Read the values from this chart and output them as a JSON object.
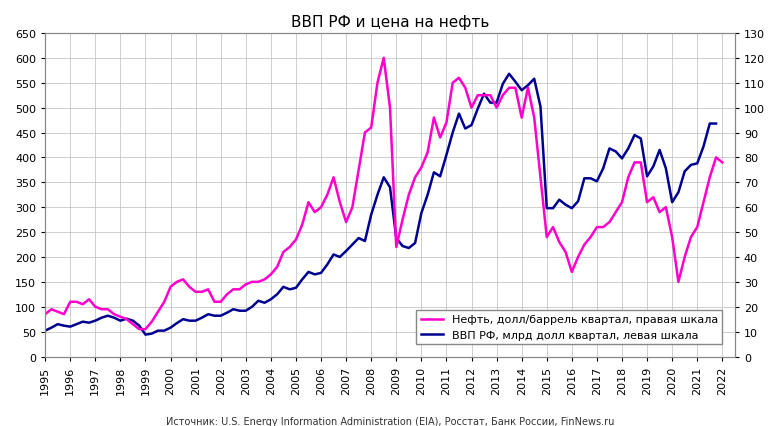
{
  "title": "ВВП РФ и цена на нефть",
  "source": "Источник: U.S. Energy Information Administration (EIA), Росстат, Банк России, FinNews.ru",
  "legend_oil": "Нефть, долл/баррель квартал, правая шкала",
  "legend_gdp": "ВВП РФ, млрд долл квартал, левая шкала",
  "oil_color": "#FF00CC",
  "gdp_color": "#000090",
  "background_color": "#FFFFFF",
  "grid_color": "#BBBBBB",
  "ylim_left": [
    0,
    650
  ],
  "ylim_right": [
    0,
    130
  ],
  "yticks_left": [
    0,
    50,
    100,
    150,
    200,
    250,
    300,
    350,
    400,
    450,
    500,
    550,
    600,
    650
  ],
  "yticks_right": [
    0,
    10,
    20,
    30,
    40,
    50,
    60,
    70,
    80,
    90,
    100,
    110,
    120,
    130
  ],
  "gdp_x": [
    1995.0,
    1995.25,
    1995.5,
    1995.75,
    1996.0,
    1996.25,
    1996.5,
    1996.75,
    1997.0,
    1997.25,
    1997.5,
    1997.75,
    1998.0,
    1998.25,
    1998.5,
    1998.75,
    1999.0,
    1999.25,
    1999.5,
    1999.75,
    2000.0,
    2000.25,
    2000.5,
    2000.75,
    2001.0,
    2001.25,
    2001.5,
    2001.75,
    2002.0,
    2002.25,
    2002.5,
    2002.75,
    2003.0,
    2003.25,
    2003.5,
    2003.75,
    2004.0,
    2004.25,
    2004.5,
    2004.75,
    2005.0,
    2005.25,
    2005.5,
    2005.75,
    2006.0,
    2006.25,
    2006.5,
    2006.75,
    2007.0,
    2007.25,
    2007.5,
    2007.75,
    2008.0,
    2008.25,
    2008.5,
    2008.75,
    2009.0,
    2009.25,
    2009.5,
    2009.75,
    2010.0,
    2010.25,
    2010.5,
    2010.75,
    2011.0,
    2011.25,
    2011.5,
    2011.75,
    2012.0,
    2012.25,
    2012.5,
    2012.75,
    2013.0,
    2013.25,
    2013.5,
    2013.75,
    2014.0,
    2014.25,
    2014.5,
    2014.75,
    2015.0,
    2015.25,
    2015.5,
    2015.75,
    2016.0,
    2016.25,
    2016.5,
    2016.75,
    2017.0,
    2017.25,
    2017.5,
    2017.75,
    2018.0,
    2018.25,
    2018.5,
    2018.75,
    2019.0,
    2019.25,
    2019.5,
    2019.75,
    2020.0,
    2020.25,
    2020.5,
    2020.75,
    2021.0,
    2021.25,
    2021.5,
    2021.75
  ],
  "gdp_y": [
    52,
    58,
    65,
    62,
    60,
    65,
    70,
    68,
    72,
    78,
    82,
    78,
    72,
    76,
    72,
    62,
    44,
    46,
    52,
    52,
    58,
    67,
    75,
    72,
    72,
    78,
    85,
    82,
    82,
    88,
    95,
    92,
    92,
    100,
    112,
    108,
    115,
    125,
    140,
    135,
    138,
    155,
    170,
    165,
    168,
    185,
    205,
    200,
    212,
    225,
    238,
    232,
    285,
    325,
    360,
    340,
    238,
    222,
    218,
    228,
    288,
    325,
    370,
    362,
    405,
    450,
    488,
    458,
    465,
    498,
    528,
    510,
    510,
    548,
    568,
    552,
    535,
    545,
    558,
    502,
    298,
    298,
    315,
    305,
    298,
    312,
    358,
    358,
    352,
    378,
    418,
    412,
    398,
    418,
    445,
    438,
    362,
    382,
    415,
    378,
    310,
    330,
    372,
    385,
    388,
    422,
    468,
    468
  ],
  "oil_x": [
    1995.0,
    1995.25,
    1995.5,
    1995.75,
    1996.0,
    1996.25,
    1996.5,
    1996.75,
    1997.0,
    1997.25,
    1997.5,
    1997.75,
    1998.0,
    1998.25,
    1998.5,
    1998.75,
    1999.0,
    1999.25,
    1999.5,
    1999.75,
    2000.0,
    2000.25,
    2000.5,
    2000.75,
    2001.0,
    2001.25,
    2001.5,
    2001.75,
    2002.0,
    2002.25,
    2002.5,
    2002.75,
    2003.0,
    2003.25,
    2003.5,
    2003.75,
    2004.0,
    2004.25,
    2004.5,
    2004.75,
    2005.0,
    2005.25,
    2005.5,
    2005.75,
    2006.0,
    2006.25,
    2006.5,
    2006.75,
    2007.0,
    2007.25,
    2007.5,
    2007.75,
    2008.0,
    2008.25,
    2008.5,
    2008.75,
    2009.0,
    2009.25,
    2009.5,
    2009.75,
    2010.0,
    2010.25,
    2010.5,
    2010.75,
    2011.0,
    2011.25,
    2011.5,
    2011.75,
    2012.0,
    2012.25,
    2012.5,
    2012.75,
    2013.0,
    2013.25,
    2013.5,
    2013.75,
    2014.0,
    2014.25,
    2014.5,
    2014.75,
    2015.0,
    2015.25,
    2015.5,
    2015.75,
    2016.0,
    2016.25,
    2016.5,
    2016.75,
    2017.0,
    2017.25,
    2017.5,
    2017.75,
    2018.0,
    2018.25,
    2018.5,
    2018.75,
    2019.0,
    2019.25,
    2019.5,
    2019.75,
    2020.0,
    2020.25,
    2020.5,
    2020.75,
    2021.0,
    2021.25,
    2021.5,
    2021.75,
    2022.0
  ],
  "oil_y": [
    17,
    19,
    18,
    17,
    22,
    22,
    21,
    23,
    20,
    19,
    19,
    17,
    16,
    15,
    13,
    11,
    11,
    14,
    18,
    22,
    28,
    30,
    31,
    28,
    26,
    26,
    27,
    22,
    22,
    25,
    27,
    27,
    29,
    30,
    30,
    31,
    33,
    36,
    42,
    44,
    47,
    53,
    62,
    58,
    60,
    65,
    72,
    62,
    54,
    60,
    75,
    90,
    92,
    110,
    120,
    100,
    44,
    55,
    65,
    72,
    76,
    82,
    96,
    88,
    94,
    110,
    112,
    108,
    100,
    105,
    105,
    105,
    100,
    105,
    108,
    108,
    96,
    108,
    96,
    72,
    48,
    52,
    46,
    42,
    34,
    40,
    45,
    48,
    52,
    52,
    54,
    58,
    62,
    72,
    78,
    78,
    62,
    64,
    58,
    60,
    48,
    30,
    40,
    48,
    52,
    62,
    72,
    80,
    78
  ]
}
